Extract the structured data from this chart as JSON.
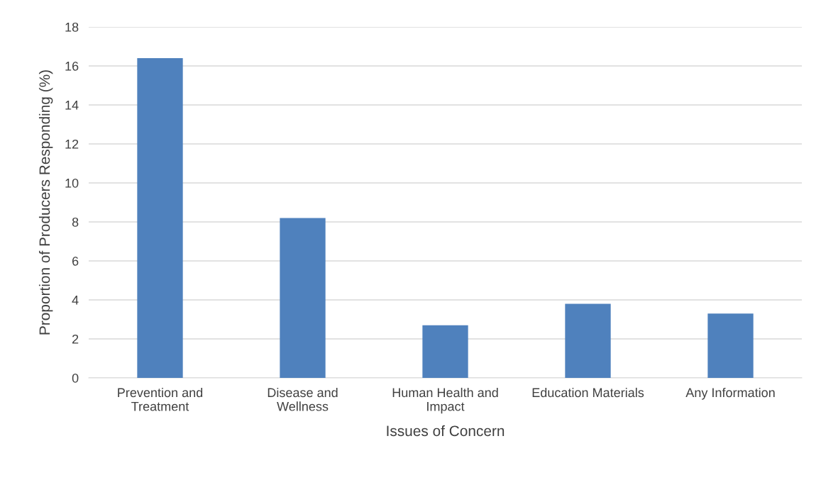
{
  "chart_data": {
    "type": "bar",
    "xlabel": "Issues of Concern",
    "ylabel": "Proportion of Producers Responding (%)",
    "categories": [
      "Prevention and\nTreatment",
      "Disease and\nWellness",
      "Human Health and\nImpact",
      "Education Materials",
      "Any Information"
    ],
    "values": [
      16.4,
      8.2,
      2.7,
      3.8,
      3.3
    ],
    "color": "#4f81bd",
    "ylim": [
      0,
      18
    ],
    "yticks": [
      0,
      2,
      4,
      6,
      8,
      10,
      12,
      14,
      16,
      18
    ],
    "grid": "y",
    "legend": false
  }
}
